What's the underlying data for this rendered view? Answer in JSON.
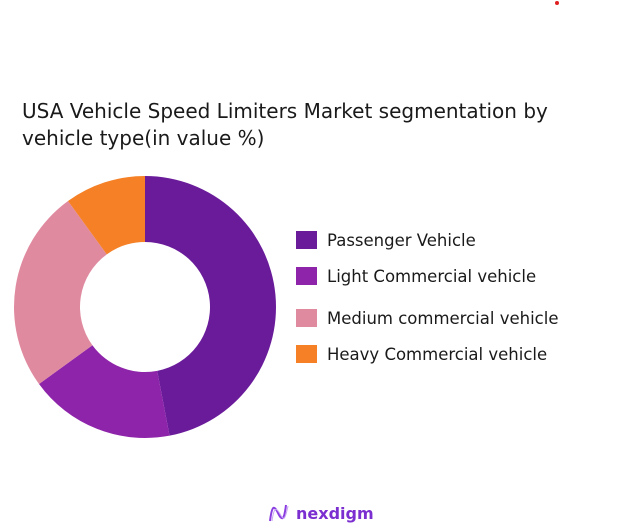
{
  "chart_data": {
    "type": "pie",
    "variant": "donut",
    "title": "USA Vehicle Speed Limiters Market segmentation by vehicle type(in value %)",
    "categories": [
      "Passenger Vehicle",
      "Light Commercial vehicle",
      "Medium commercial vehicle",
      "Heavy Commercial vehicle"
    ],
    "values": [
      47,
      18,
      25,
      10
    ],
    "colors": [
      "#6a1b9a",
      "#8e24aa",
      "#e08aa0",
      "#f58025"
    ],
    "legend_position": "right"
  },
  "brand": {
    "name": "nexdigm",
    "color": "#7b2fd0"
  },
  "decor": {
    "dot_color": "#e02020"
  }
}
